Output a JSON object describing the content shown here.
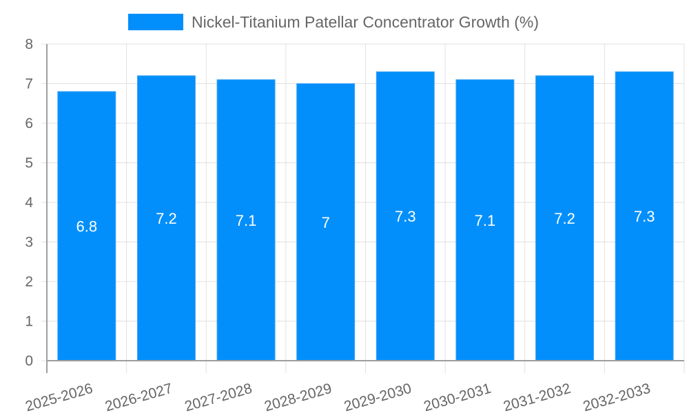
{
  "legend": {
    "label": "Nickel-Titanium Patellar Concentrator Growth (%)",
    "color": "#038ffb"
  },
  "colors": {
    "bar": "#038ffb",
    "bar_border": "#42a5f5",
    "grid": "#e0e0e0",
    "axis": "#9e9e9e",
    "tick_text": "#666666",
    "data_label": "#ffffff"
  },
  "chart_data": {
    "type": "bar",
    "title": "",
    "xlabel": "",
    "ylabel": "",
    "categories": [
      "2025-2026",
      "2026-2027",
      "2027-2028",
      "2028-2029",
      "2029-2030",
      "2030-2031",
      "2031-2032",
      "2032-2033"
    ],
    "series": [
      {
        "name": "Nickel-Titanium Patellar Concentrator Growth (%)",
        "values": [
          6.8,
          7.2,
          7.1,
          7,
          7.3,
          7.1,
          7.2,
          7.3
        ]
      }
    ],
    "data_labels": [
      "6.8",
      "7.2",
      "7.1",
      "7",
      "7.3",
      "7.1",
      "7.2",
      "7.3"
    ],
    "ylim": [
      0,
      8
    ],
    "yticks": [
      "0",
      "1",
      "2",
      "3",
      "4",
      "5",
      "6",
      "7",
      "8"
    ],
    "grid": true,
    "legend_position": "top"
  }
}
